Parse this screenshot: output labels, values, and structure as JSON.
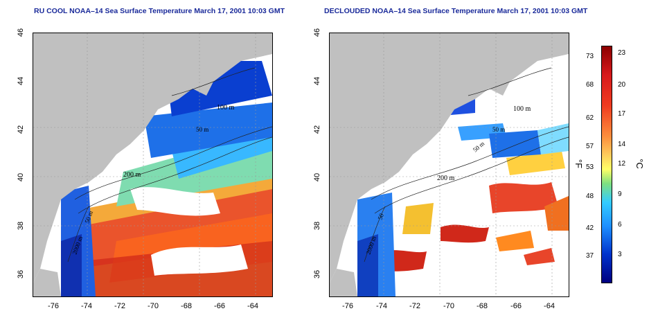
{
  "left_title": "RU COOL NOAA–14 Sea Surface Temperature March 17, 2001 10:03 GMT",
  "right_title": "DECLOUDED NOAA–14 Sea Surface Temperature March 17, 2001 10:03 GMT",
  "lat_ticks": [
    "46",
    "44",
    "42",
    "40",
    "38",
    "36"
  ],
  "lon_ticks": [
    "-76",
    "-74",
    "-72",
    "-70",
    "-68",
    "-66",
    "-64"
  ],
  "contour_labels": {
    "left": [
      "200 m",
      "100 m",
      "50 m",
      "2000 m",
      "50 m"
    ],
    "right": [
      "100 m",
      "50 m",
      "50 m",
      "200 m",
      "50",
      "2000 m"
    ]
  },
  "colorbar": {
    "fahrenheit": [
      "73",
      "68",
      "62",
      "57",
      "53",
      "48",
      "42",
      "37"
    ],
    "celsius": [
      "23",
      "20",
      "17",
      "14",
      "12",
      "9",
      "6",
      "3"
    ],
    "unit_f": "°F",
    "unit_c": "°C",
    "colors": [
      "#8b0000",
      "#d7191c",
      "#f03b20",
      "#fd8d3c",
      "#fecc5c",
      "#ffff66",
      "#7fe07f",
      "#33ccff",
      "#1e90ff",
      "#0033cc",
      "#000080"
    ]
  },
  "land_color": "#c0c0c0"
}
